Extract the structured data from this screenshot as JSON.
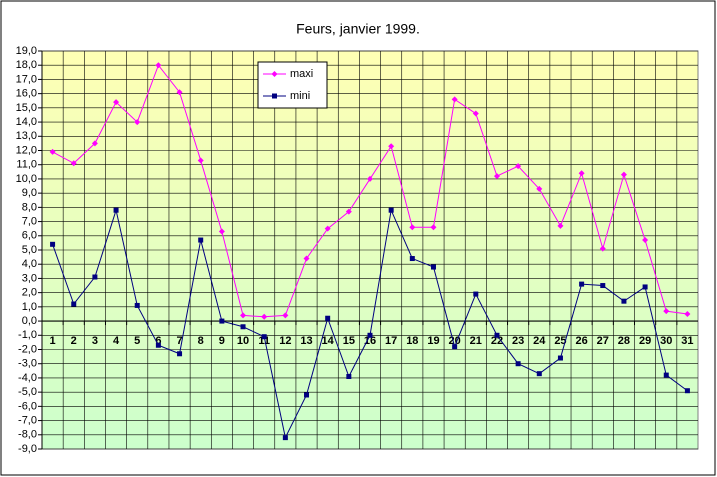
{
  "chart_data": {
    "type": "line",
    "title": "Feurs, janvier 1999.",
    "categories": [
      "1",
      "2",
      "3",
      "4",
      "5",
      "6",
      "7",
      "8",
      "9",
      "10",
      "11",
      "12",
      "13",
      "14",
      "15",
      "16",
      "17",
      "18",
      "19",
      "20",
      "21",
      "22",
      "23",
      "24",
      "25",
      "26",
      "27",
      "28",
      "29",
      "30",
      "31"
    ],
    "series": [
      {
        "name": "maxi",
        "color": "#ff00ff",
        "marker": "diamond",
        "values": [
          11.9,
          11.1,
          12.5,
          15.4,
          14.0,
          18.0,
          16.1,
          11.3,
          6.3,
          0.4,
          0.3,
          0.4,
          4.4,
          6.5,
          7.7,
          10.0,
          12.3,
          6.6,
          6.6,
          15.6,
          14.6,
          10.2,
          10.9,
          9.3,
          6.7,
          10.4,
          5.1,
          10.3,
          5.7,
          0.7,
          0.5
        ]
      },
      {
        "name": "mini",
        "color": "#000080",
        "marker": "square",
        "values": [
          5.4,
          1.2,
          3.1,
          7.8,
          1.1,
          -1.7,
          -2.3,
          5.7,
          0.0,
          -0.4,
          -1.1,
          -8.2,
          -5.2,
          0.2,
          -3.9,
          -1.0,
          7.8,
          4.4,
          3.8,
          -1.8,
          1.9,
          -1.0,
          -3.0,
          -3.7,
          -2.6,
          2.6,
          2.5,
          1.4,
          2.4,
          -3.8,
          -4.9
        ]
      }
    ],
    "ylim": [
      -9,
      19
    ],
    "yticks": [
      {
        "value": -9,
        "label": "-9,0"
      },
      {
        "value": -8,
        "label": "-8,0"
      },
      {
        "value": -7,
        "label": "-7,0"
      },
      {
        "value": -6,
        "label": "-6,0"
      },
      {
        "value": -5,
        "label": "-5,0"
      },
      {
        "value": -4,
        "label": "-4,0"
      },
      {
        "value": -3,
        "label": "-3,0"
      },
      {
        "value": -2,
        "label": "-2,0"
      },
      {
        "value": -1,
        "label": "-1,0"
      },
      {
        "value": 0,
        "label": "0,0"
      },
      {
        "value": 1,
        "label": "1,0"
      },
      {
        "value": 2,
        "label": "2,0"
      },
      {
        "value": 3,
        "label": "3,0"
      },
      {
        "value": 4,
        "label": "4,0"
      },
      {
        "value": 5,
        "label": "5,0"
      },
      {
        "value": 6,
        "label": "6,0"
      },
      {
        "value": 7,
        "label": "7,0"
      },
      {
        "value": 8,
        "label": "8,0"
      },
      {
        "value": 9,
        "label": "9,0"
      },
      {
        "value": 10,
        "label": "10,0"
      },
      {
        "value": 11,
        "label": "11,0"
      },
      {
        "value": 12,
        "label": "12,0"
      },
      {
        "value": 13,
        "label": "13,0"
      },
      {
        "value": 14,
        "label": "14,0"
      },
      {
        "value": 15,
        "label": "15,0"
      },
      {
        "value": 16,
        "label": "16,0"
      },
      {
        "value": 17,
        "label": "17,0"
      },
      {
        "value": 18,
        "label": "18,0"
      },
      {
        "value": 19,
        "label": "19,0"
      }
    ],
    "grid": true,
    "legend": "top-left"
  }
}
